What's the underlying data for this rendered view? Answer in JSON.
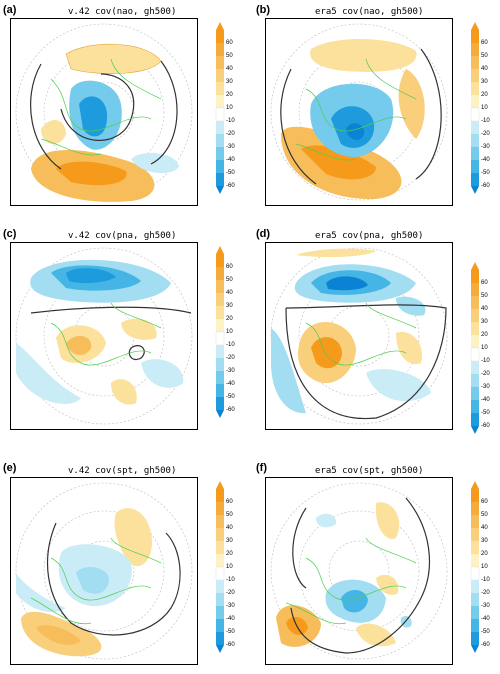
{
  "colorbar": {
    "ticks": [
      "60",
      "50",
      "40",
      "30",
      "20",
      "10",
      "-10",
      "-20",
      "-30",
      "-40",
      "-50",
      "-60"
    ],
    "colors": [
      "#f59a1a",
      "#f5ab3a",
      "#f7bd5a",
      "#f9cf7b",
      "#fbe19b",
      "#fdf2c4",
      "#ffffff",
      "#c9ecf7",
      "#a2ddf2",
      "#75cbec",
      "#45b5e5",
      "#1e9bdd",
      "#0b83d4"
    ]
  },
  "panels": [
    {
      "label": "(a)",
      "title": "v.42  cov(nao, gh500)"
    },
    {
      "label": "(b)",
      "title": "era5  cov(nao, gh500)"
    },
    {
      "label": "(c)",
      "title": "v.42  cov(pna, gh500)"
    },
    {
      "label": "(d)",
      "title": "era5  cov(pna, gh500)"
    },
    {
      "label": "(e)",
      "title": "v.42  cov(spt, gh500)"
    },
    {
      "label": "(f)",
      "title": "era5  cov(spt, gh500)"
    }
  ]
}
